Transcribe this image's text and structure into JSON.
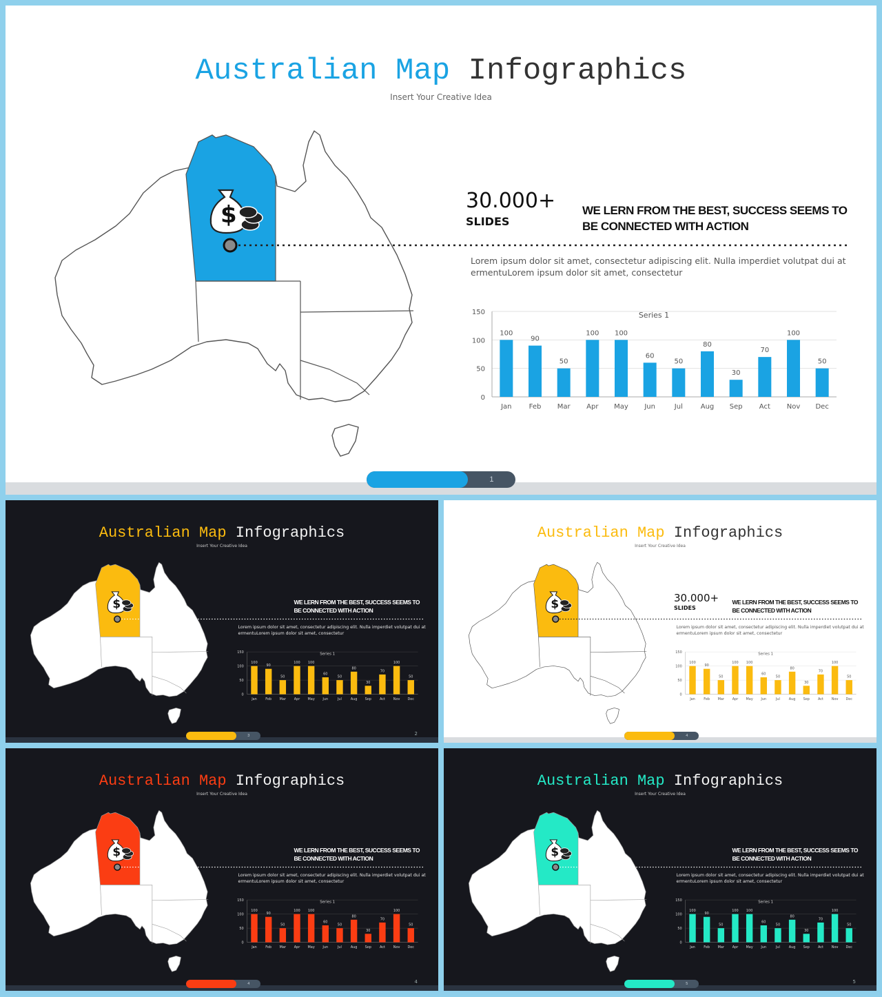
{
  "title": {
    "part1": "Australian Map",
    "part2": "Infographics"
  },
  "subtitle": "Insert Your Creative Idea",
  "stat": {
    "value": "30.000+",
    "unit": "SLIDES"
  },
  "heading": {
    "line1": "WE LERN FROM THE BEST, SUCCESS SEEMS TO",
    "line2": "BE CONNECTED WITH ACTION"
  },
  "body": {
    "line1": "Lorem ipsum dolor sit amet, consectetur adipiscing elit. Nulla imperdiet volutpat dui at",
    "line2": "ermentuLorem ipsum dolor sit amet, consectetur"
  },
  "chart_data": {
    "type": "bar",
    "title": "Series 1",
    "categories": [
      "Jan",
      "Feb",
      "Mar",
      "Apr",
      "May",
      "Jun",
      "Jul",
      "Aug",
      "Sep",
      "Act",
      "Nov",
      "Dec"
    ],
    "series": [
      {
        "name": "Series 1",
        "values": [
          100,
          90,
          50,
          100,
          100,
          60,
          50,
          80,
          30,
          70,
          100,
          50
        ]
      }
    ],
    "value_labels": [
      "100",
      "90",
      "50",
      "100",
      "100",
      "60",
      "50",
      "80",
      "30",
      "70",
      "100",
      "50"
    ],
    "yticks": [
      "0",
      "50",
      "100",
      "150"
    ],
    "ylim": [
      0,
      150
    ],
    "grid": true,
    "legend": "none"
  },
  "slides": [
    {
      "theme": "white",
      "accent": "#1aa3e3",
      "pager_number": "1",
      "corner_number": "",
      "show_stat": true,
      "progress": 0.68
    },
    {
      "theme": "dark",
      "accent": "#fbbb0f",
      "pager_number": "3",
      "corner_number": "2",
      "show_stat": false,
      "progress": 0.68
    },
    {
      "theme": "white",
      "accent": "#fbbb0f",
      "pager_number": "4",
      "corner_number": "",
      "show_stat": true,
      "progress": 0.68
    },
    {
      "theme": "dark",
      "accent": "#fb3d13",
      "pager_number": "4",
      "corner_number": "4",
      "show_stat": false,
      "progress": 0.68
    },
    {
      "theme": "dark",
      "accent": "#24e9c6",
      "pager_number": "5",
      "corner_number": "5",
      "show_stat": false,
      "progress": 0.68
    }
  ],
  "icons": {
    "marker": "location-pin-icon",
    "money": "money-bag-icon",
    "coins": "coin-stack-icon"
  }
}
